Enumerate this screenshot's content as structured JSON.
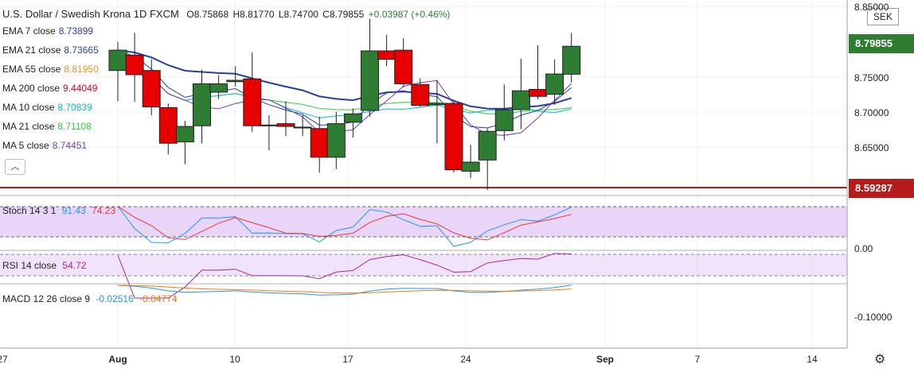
{
  "header": {
    "symbol_title": "U.S. Dollar / Swedish Krona  1D  FXCM",
    "ohlc": {
      "o": "O8.75868",
      "h": "H8.81770",
      "l": "L8.74700",
      "c": "C8.79855",
      "chg": "+0.03987 (+0.46%)"
    }
  },
  "indicators": [
    {
      "label": "EMA 7 close",
      "value": "8.73899",
      "color": "#2a3f9e"
    },
    {
      "label": "EMA 21 close",
      "value": "8.73665",
      "color": "#2a3f9e"
    },
    {
      "label": "EMA 55 close",
      "value": "8.81950",
      "color": "#f7931a"
    },
    {
      "label": "MA 200 close",
      "value": "9.44049",
      "color": "#e0001b"
    },
    {
      "label": "MA 10 close",
      "value": "8.70839",
      "color": "#00bcd4"
    },
    {
      "label": "MA 21 close",
      "value": "8.71108",
      "color": "#2ecc40"
    },
    {
      "label": "MA 5 close",
      "value": "8.74451",
      "color": "#6a3fb3"
    }
  ],
  "price_axis": {
    "currency": "SEK",
    "ticks": [
      "8.85000",
      "8.75000",
      "8.70000",
      "8.65000"
    ],
    "last_price": "8.79855",
    "last_price_color": "#2e7d32",
    "support_level": "8.59287",
    "support_color": "#b71c1c"
  },
  "x_axis": {
    "ticks": [
      {
        "label": "27",
        "bold": false
      },
      {
        "label": "Aug",
        "bold": true
      },
      {
        "label": "10",
        "bold": false
      },
      {
        "label": "17",
        "bold": false
      },
      {
        "label": "24",
        "bold": false
      },
      {
        "label": "Sep",
        "bold": true
      },
      {
        "label": "7",
        "bold": false
      },
      {
        "label": "14",
        "bold": false
      }
    ]
  },
  "stoch": {
    "label": "Stoch 14 3 1",
    "k": "91.43",
    "d": "74.23",
    "k_color": "#2196f3",
    "d_color": "#e53935",
    "axis_tick": "0.00"
  },
  "rsi": {
    "label": "RSI 14 close",
    "value": "54.72",
    "color": "#9c27b0"
  },
  "macd": {
    "label": "MACD 12 26 close 9",
    "macd": "-0.02516",
    "signal": "-0.04774",
    "macd_color": "#2196f3",
    "signal_color": "#f57c00",
    "axis_tick": "-0.10000"
  },
  "colors": {
    "up": "#2e7d32",
    "down": "#e60000",
    "band": "#e1c7f5"
  },
  "chart_data": {
    "type": "candlestick",
    "instrument": "USDSEK",
    "interval": "1D",
    "candles": [
      {
        "o": 8.764,
        "h": 8.805,
        "l": 8.72,
        "c": 8.793
      },
      {
        "o": 8.786,
        "h": 8.818,
        "l": 8.719,
        "c": 8.758
      },
      {
        "o": 8.764,
        "h": 8.78,
        "l": 8.7,
        "c": 8.712
      },
      {
        "o": 8.711,
        "h": 8.717,
        "l": 8.644,
        "c": 8.66
      },
      {
        "o": 8.662,
        "h": 8.692,
        "l": 8.63,
        "c": 8.684
      },
      {
        "o": 8.685,
        "h": 8.765,
        "l": 8.66,
        "c": 8.745
      },
      {
        "o": 8.733,
        "h": 8.757,
        "l": 8.723,
        "c": 8.745
      },
      {
        "o": 8.748,
        "h": 8.77,
        "l": 8.741,
        "c": 8.75
      },
      {
        "o": 8.752,
        "h": 8.79,
        "l": 8.676,
        "c": 8.685
      },
      {
        "o": 8.685,
        "h": 8.7,
        "l": 8.65,
        "c": 8.686
      },
      {
        "o": 8.688,
        "h": 8.72,
        "l": 8.67,
        "c": 8.684
      },
      {
        "o": 8.682,
        "h": 8.7,
        "l": 8.67,
        "c": 8.683
      },
      {
        "o": 8.681,
        "h": 8.698,
        "l": 8.618,
        "c": 8.64
      },
      {
        "o": 8.64,
        "h": 8.705,
        "l": 8.623,
        "c": 8.688
      },
      {
        "o": 8.69,
        "h": 8.71,
        "l": 8.668,
        "c": 8.702
      },
      {
        "o": 8.707,
        "h": 8.838,
        "l": 8.698,
        "c": 8.792
      },
      {
        "o": 8.792,
        "h": 8.815,
        "l": 8.77,
        "c": 8.78
      },
      {
        "o": 8.793,
        "h": 8.81,
        "l": 8.74,
        "c": 8.745
      },
      {
        "o": 8.744,
        "h": 8.753,
        "l": 8.712,
        "c": 8.714
      },
      {
        "o": 8.715,
        "h": 8.75,
        "l": 8.66,
        "c": 8.717
      },
      {
        "o": 8.717,
        "h": 8.722,
        "l": 8.618,
        "c": 8.622
      },
      {
        "o": 8.62,
        "h": 8.658,
        "l": 8.61,
        "c": 8.633
      },
      {
        "o": 8.636,
        "h": 8.681,
        "l": 8.593,
        "c": 8.677
      },
      {
        "o": 8.678,
        "h": 8.744,
        "l": 8.664,
        "c": 8.708
      },
      {
        "o": 8.708,
        "h": 8.781,
        "l": 8.68,
        "c": 8.735
      },
      {
        "o": 8.737,
        "h": 8.8,
        "l": 8.723,
        "c": 8.727
      },
      {
        "o": 8.73,
        "h": 8.78,
        "l": 8.715,
        "c": 8.759
      },
      {
        "o": 8.7587,
        "h": 8.8177,
        "l": 8.747,
        "c": 8.7986
      }
    ]
  }
}
